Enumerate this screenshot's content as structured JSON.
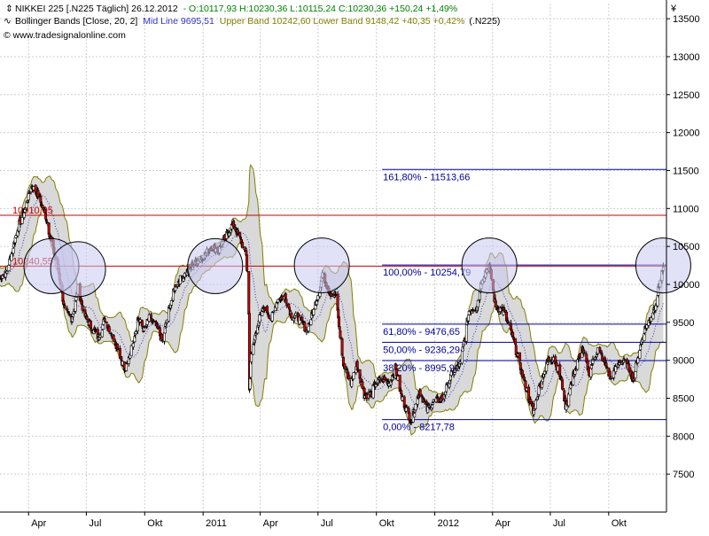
{
  "header": {
    "line1": {
      "symbol_title": "NIKKEI 225 [.N225  Täglich] 26.12.2012",
      "ohlc": "- O:10117,93 H:10230,36 L:10115,24 C:10230,36 +150,24 +1,49%"
    },
    "line2": {
      "indicator_label": "Bollinger Bands [Close, 20, 2]",
      "mid_line": "Mid Line 9695,51",
      "bands": "Upper Band 10242,60 Lower Band 9148,42 +40,35 +0,42%",
      "symbol_ref": "(.N225)"
    },
    "line3": {
      "copyright": "© www.tradesignalonline.com"
    }
  },
  "colors": {
    "candle_up": "#ffffff",
    "candle_down": "#cc0000",
    "candle_outline": "#000000",
    "band_fill": "#d9d9d9",
    "band_line": "#808000",
    "mid_line": "#3333cc",
    "fib_line": "#000099",
    "resistance_line": "#cc0000",
    "circle_fill": "#c8c8f0",
    "grid": "#cfcfcf",
    "ohlc_text": "#008000",
    "mid_text": "#3333cc",
    "bands_text": "#808000"
  },
  "chart_data": {
    "type": "candlestick",
    "instrument": "NIKKEI 225",
    "currency_symbol": "¥",
    "ylim": [
      7000,
      13700
    ],
    "yticks": [
      7500,
      8000,
      8500,
      9000,
      9500,
      10000,
      10500,
      11000,
      11500,
      12000,
      12500,
      13000,
      13500
    ],
    "ytick_labels": [
      "7500",
      "8000",
      "8500",
      "9000",
      "9500",
      "10000",
      "10500",
      "11000",
      "11500",
      "12000",
      "12500",
      "13000",
      "13500"
    ],
    "xlim": [
      "2010-02-15",
      "2012-12-31"
    ],
    "xticks": [
      {
        "date": "2010-04-01",
        "label": "Apr"
      },
      {
        "date": "2010-07-01",
        "label": "Jul"
      },
      {
        "date": "2010-10-01",
        "label": "Okt"
      },
      {
        "date": "2011-01-01",
        "label": "2011"
      },
      {
        "date": "2011-04-01",
        "label": "Apr"
      },
      {
        "date": "2011-07-01",
        "label": "Jul"
      },
      {
        "date": "2011-10-01",
        "label": "Okt"
      },
      {
        "date": "2012-01-01",
        "label": "2012"
      },
      {
        "date": "2012-04-01",
        "label": "Apr"
      },
      {
        "date": "2012-07-01",
        "label": "Jul"
      },
      {
        "date": "2012-10-01",
        "label": "Okt"
      }
    ],
    "close_path": [
      [
        "2010-02-15",
        10100
      ],
      [
        "2010-02-25",
        10150
      ],
      [
        "2010-03-05",
        10400
      ],
      [
        "2010-03-15",
        10750
      ],
      [
        "2010-03-25",
        10950
      ],
      [
        "2010-04-05",
        11300
      ],
      [
        "2010-04-15",
        11200
      ],
      [
        "2010-04-28",
        10900
      ],
      [
        "2010-05-07",
        10550
      ],
      [
        "2010-05-18",
        10200
      ],
      [
        "2010-05-28",
        9650
      ],
      [
        "2010-06-08",
        9550
      ],
      [
        "2010-06-18",
        9950
      ],
      [
        "2010-06-28",
        9600
      ],
      [
        "2010-07-08",
        9450
      ],
      [
        "2010-07-20",
        9300
      ],
      [
        "2010-07-30",
        9550
      ],
      [
        "2010-08-10",
        9350
      ],
      [
        "2010-08-20",
        9150
      ],
      [
        "2010-08-31",
        8850
      ],
      [
        "2010-09-10",
        9150
      ],
      [
        "2010-09-20",
        9550
      ],
      [
        "2010-09-30",
        9400
      ],
      [
        "2010-10-08",
        9550
      ],
      [
        "2010-10-19",
        9450
      ],
      [
        "2010-10-29",
        9250
      ],
      [
        "2010-11-09",
        9700
      ],
      [
        "2010-11-19",
        10000
      ],
      [
        "2010-11-30",
        10100
      ],
      [
        "2010-12-10",
        10200
      ],
      [
        "2010-12-22",
        10300
      ],
      [
        "2011-01-05",
        10400
      ],
      [
        "2011-01-14",
        10500
      ],
      [
        "2011-01-25",
        10450
      ],
      [
        "2011-02-04",
        10600
      ],
      [
        "2011-02-17",
        10800
      ],
      [
        "2011-02-28",
        10600
      ],
      [
        "2011-03-10",
        10400
      ],
      [
        "2011-03-14",
        9600
      ],
      [
        "2011-03-15",
        8600
      ],
      [
        "2011-03-17",
        9000
      ],
      [
        "2011-03-28",
        9500
      ],
      [
        "2011-04-08",
        9700
      ],
      [
        "2011-04-19",
        9550
      ],
      [
        "2011-04-28",
        9800
      ],
      [
        "2011-05-10",
        9850
      ],
      [
        "2011-05-20",
        9600
      ],
      [
        "2011-06-01",
        9550
      ],
      [
        "2011-06-13",
        9400
      ],
      [
        "2011-06-24",
        9650
      ],
      [
        "2011-07-05",
        10000
      ],
      [
        "2011-07-08",
        10150
      ],
      [
        "2011-07-19",
        9900
      ],
      [
        "2011-07-29",
        9850
      ],
      [
        "2011-08-05",
        9300
      ],
      [
        "2011-08-10",
        8950
      ],
      [
        "2011-08-22",
        8700
      ],
      [
        "2011-08-31",
        8950
      ],
      [
        "2011-09-12",
        8550
      ],
      [
        "2011-09-22",
        8550
      ],
      [
        "2011-09-30",
        8700
      ],
      [
        "2011-10-11",
        8750
      ],
      [
        "2011-10-21",
        8700
      ],
      [
        "2011-10-31",
        8900
      ],
      [
        "2011-11-10",
        8500
      ],
      [
        "2011-11-25",
        8200
      ],
      [
        "2011-12-08",
        8600
      ],
      [
        "2011-12-20",
        8350
      ],
      [
        "2011-12-30",
        8450
      ],
      [
        "2012-01-13",
        8500
      ],
      [
        "2012-01-27",
        8800
      ],
      [
        "2012-02-10",
        8950
      ],
      [
        "2012-02-24",
        9650
      ],
      [
        "2012-03-07",
        9700
      ],
      [
        "2012-03-16",
        10100
      ],
      [
        "2012-03-27",
        10250
      ],
      [
        "2012-04-06",
        9700
      ],
      [
        "2012-04-18",
        9650
      ],
      [
        "2012-05-01",
        9350
      ],
      [
        "2012-05-15",
        8900
      ],
      [
        "2012-05-25",
        8600
      ],
      [
        "2012-06-04",
        8300
      ],
      [
        "2012-06-15",
        8700
      ],
      [
        "2012-06-28",
        9000
      ],
      [
        "2012-07-06",
        9050
      ],
      [
        "2012-07-18",
        8750
      ],
      [
        "2012-07-25",
        8400
      ],
      [
        "2012-08-06",
        8800
      ],
      [
        "2012-08-20",
        9150
      ],
      [
        "2012-08-31",
        8850
      ],
      [
        "2012-09-14",
        9150
      ],
      [
        "2012-09-26",
        8950
      ],
      [
        "2012-10-04",
        8750
      ],
      [
        "2012-10-19",
        9000
      ],
      [
        "2012-10-30",
        8950
      ],
      [
        "2012-11-09",
        8750
      ],
      [
        "2012-11-16",
        9050
      ],
      [
        "2012-11-26",
        9400
      ],
      [
        "2012-12-06",
        9550
      ],
      [
        "2012-12-14",
        9750
      ],
      [
        "2012-12-21",
        10050
      ],
      [
        "2012-12-26",
        10230
      ]
    ],
    "fibonacci_retracement": {
      "start_date": "2011-10-10",
      "end_date": "2012-12-31",
      "levels": [
        {
          "label": "161,80% - 11513,66",
          "value": 11513.66
        },
        {
          "label": "100,00% - 10254,79",
          "value": 10254.79
        },
        {
          "label": "61,80% - 9476,65",
          "value": 9476.65
        },
        {
          "label": "50,00% - 9236,29",
          "value": 9236.29
        },
        {
          "label": "38,20% - 8995,92",
          "value": 8995.92
        },
        {
          "label": "0,00% - 8217,78",
          "value": 8217.78
        }
      ]
    },
    "horizontal_lines": [
      {
        "label": "10910,05",
        "value": 10910.05
      },
      {
        "label": "10240,55",
        "value": 10240.55
      }
    ],
    "highlight_circles": [
      {
        "date": "2010-05-07",
        "value": 10240
      },
      {
        "date": "2010-06-18",
        "value": 10200
      },
      {
        "date": "2011-01-20",
        "value": 10240
      },
      {
        "date": "2011-07-07",
        "value": 10250
      },
      {
        "date": "2012-03-27",
        "value": 10250
      },
      {
        "date": "2012-12-26",
        "value": 10250
      }
    ],
    "bollinger": {
      "period": 20,
      "deviations": 2
    }
  }
}
